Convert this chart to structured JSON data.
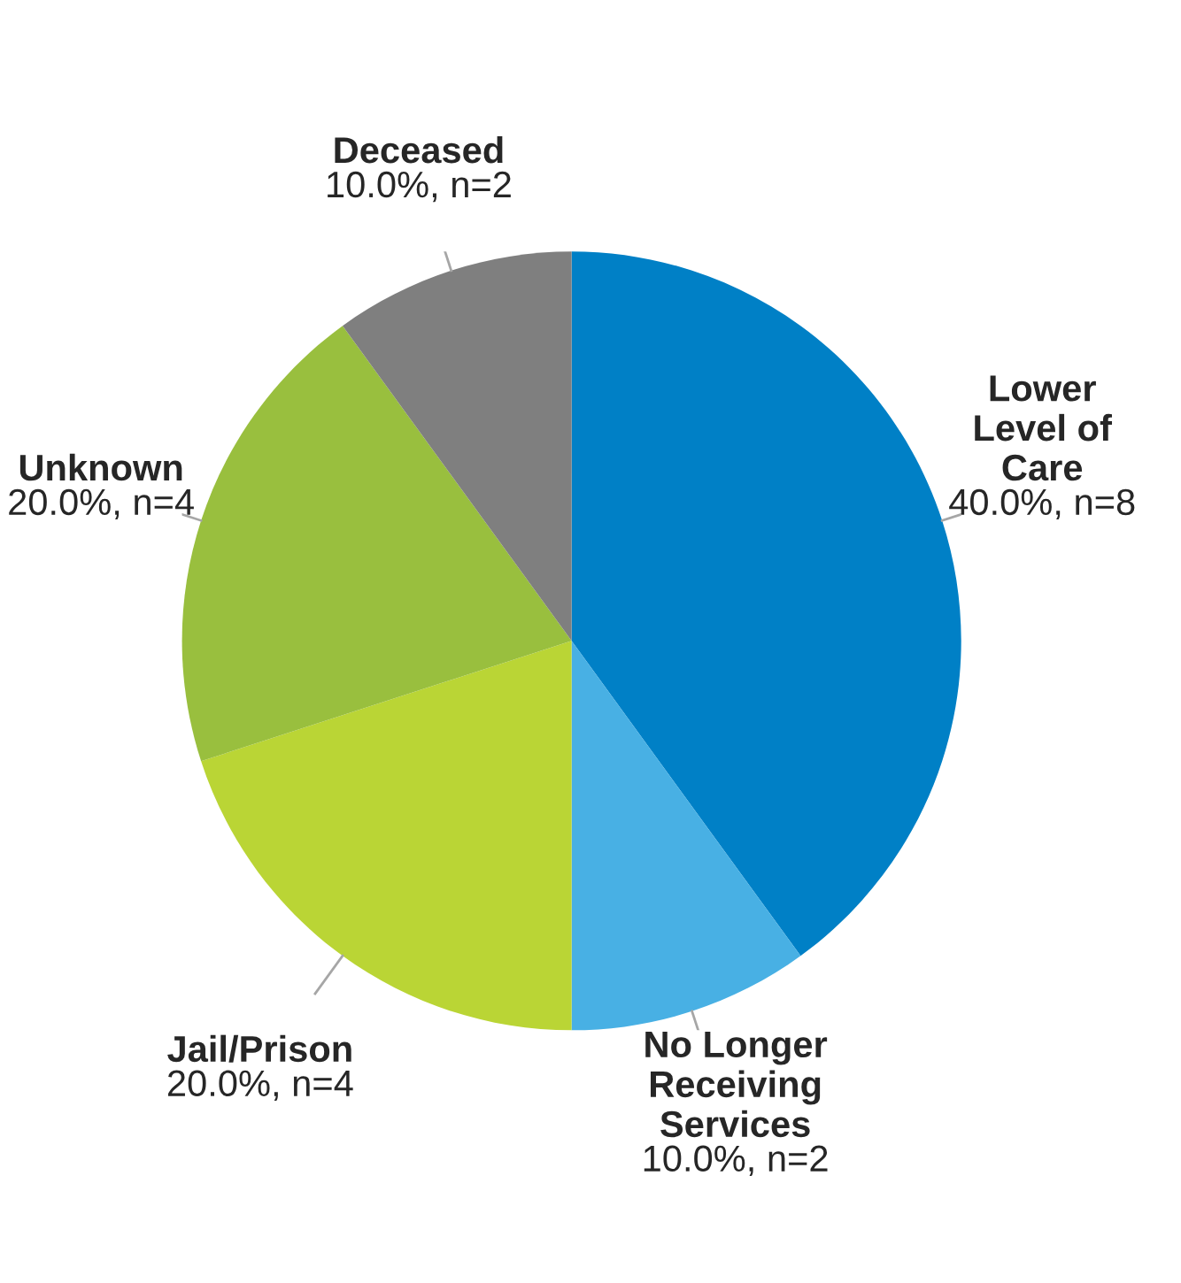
{
  "chart_data": {
    "type": "pie",
    "categories": [
      "Lower\nLevel of\nCare",
      "No Longer\nReceiving\nServices",
      "Jail/Prison",
      "Unknown",
      "Deceased"
    ],
    "values": [
      40,
      10,
      20,
      20,
      10
    ],
    "value_labels": [
      "40.0%, n=8",
      "10.0%, n=2",
      "20.0%, n=4",
      "20.0%, n=4",
      "10.0%, n=2"
    ],
    "colors": [
      "#0080c6",
      "#48b0e4",
      "#bad535",
      "#99bf3e",
      "#7f7f7f"
    ],
    "legend": false
  }
}
